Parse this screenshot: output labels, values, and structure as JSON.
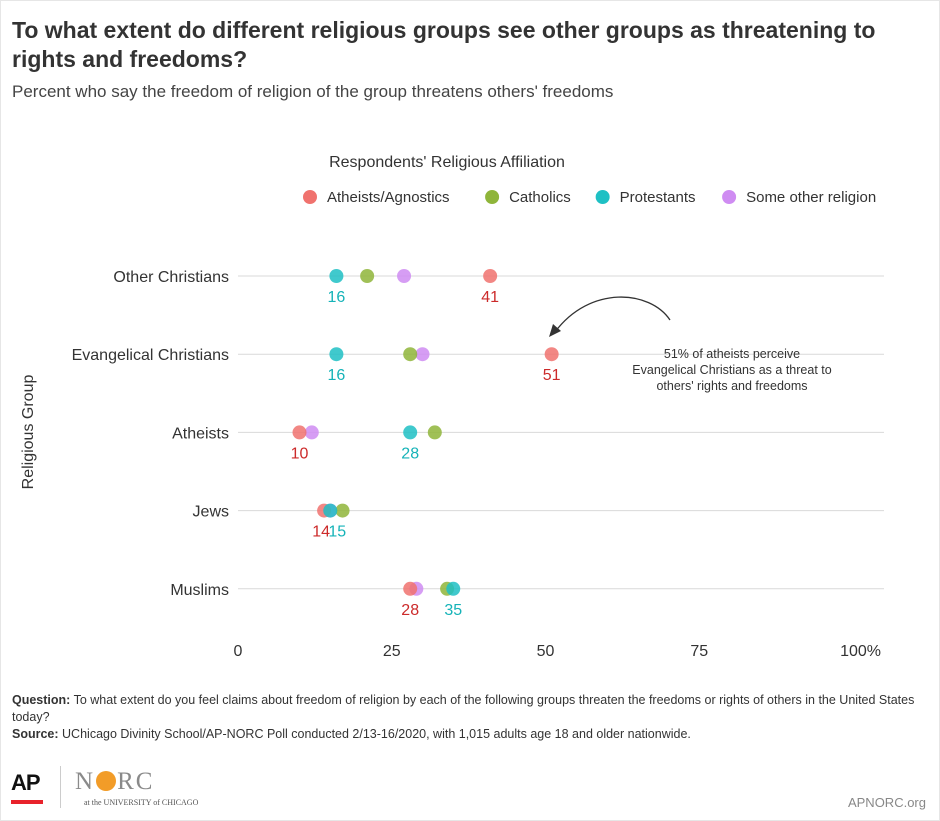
{
  "title": "To what extent do different religious groups see other groups as threatening to rights and freedoms?",
  "subtitle": "Percent who say the freedom of religion of the group threatens others' freedoms",
  "legend_title": "Respondents' Religious Affiliation",
  "y_axis_label": "Religious Group",
  "notes": {
    "question_label": "Question:",
    "question_text": "To what extent do you feel claims about freedom of religion by each of the following groups threaten the freedoms or rights of others in the United States today?",
    "source_label": "Source:",
    "source_text": "UChicago Divinity School/AP-NORC Poll conducted 2/13-16/2020, with 1,015 adults age 18 and older nationwide."
  },
  "logos": {
    "ap": "AP",
    "norc_left": "N",
    "norc_right": "RC",
    "norc_sub": "at the UNIVERSITY of CHICAGO"
  },
  "site": "APNORC.org",
  "chart_data": {
    "type": "scatter",
    "categories": [
      "Other Christians",
      "Evangelical Christians",
      "Atheists",
      "Jews",
      "Muslims"
    ],
    "x_ticks": [
      "0",
      "25",
      "50",
      "75",
      "100%"
    ],
    "xlim": [
      0,
      100
    ],
    "series": [
      {
        "name": "Atheists/Agnostics",
        "color": "#f0726e",
        "label_color": "#cc2a2a",
        "values": [
          41,
          51,
          10,
          14,
          28
        ]
      },
      {
        "name": "Catholics",
        "color": "#8fb53a",
        "values": [
          21,
          28,
          32,
          17,
          34
        ]
      },
      {
        "name": "Protestants",
        "color": "#1ec0c4",
        "label_color": "#15b3b8",
        "values": [
          16,
          16,
          28,
          15,
          35
        ]
      },
      {
        "name": "Some other religion",
        "color": "#cf8cf2",
        "values": [
          27,
          30,
          12,
          15,
          29
        ]
      }
    ],
    "data_labels": [
      {
        "category": "Other Christians",
        "series": "Protestants",
        "text": "16"
      },
      {
        "category": "Other Christians",
        "series": "Atheists/Agnostics",
        "text": "41"
      },
      {
        "category": "Evangelical Christians",
        "series": "Protestants",
        "text": "16"
      },
      {
        "category": "Evangelical Christians",
        "series": "Atheists/Agnostics",
        "text": "51"
      },
      {
        "category": "Atheists",
        "series": "Atheists/Agnostics",
        "text": "10"
      },
      {
        "category": "Atheists",
        "series": "Protestants",
        "text": "28"
      },
      {
        "category": "Jews",
        "series": "Atheists/Agnostics",
        "text": "14"
      },
      {
        "category": "Jews",
        "series": "Protestants",
        "text": "15"
      },
      {
        "category": "Muslims",
        "series": "Atheists/Agnostics",
        "text": "28"
      },
      {
        "category": "Muslims",
        "series": "Protestants",
        "text": "35"
      }
    ],
    "annotation": {
      "lines": [
        "51% of atheists perceive",
        "Evangelical Christians as a threat to",
        "others' rights and freedoms"
      ],
      "points_to": {
        "category": "Evangelical Christians",
        "value": 51
      }
    }
  }
}
